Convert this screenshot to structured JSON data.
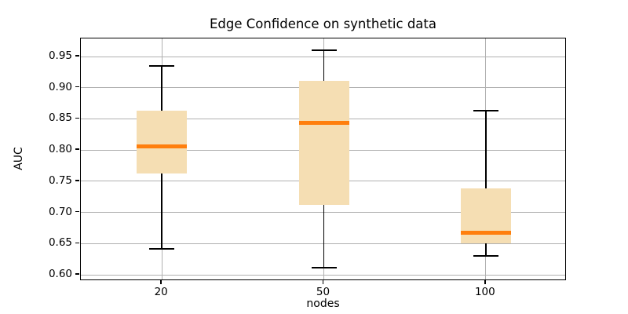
{
  "figure": {
    "title": "Edge Confidence on synthetic data",
    "xlabel": "nodes",
    "ylabel": "AUC"
  },
  "chart_data": {
    "type": "box",
    "title": "Edge Confidence on synthetic data",
    "xlabel": "nodes",
    "ylabel": "AUC",
    "categories": [
      "20",
      "50",
      "100"
    ],
    "series": [
      {
        "category": "20",
        "whisker_low": 0.642,
        "q1": 0.762,
        "median": 0.806,
        "q3": 0.863,
        "whisker_high": 0.935
      },
      {
        "category": "50",
        "whisker_low": 0.611,
        "q1": 0.712,
        "median": 0.844,
        "q3": 0.911,
        "whisker_high": 0.96
      },
      {
        "category": "100",
        "whisker_low": 0.63,
        "q1": 0.651,
        "median": 0.668,
        "q3": 0.738,
        "whisker_high": 0.863
      }
    ],
    "yticks": [
      0.6,
      0.65,
      0.7,
      0.75,
      0.8,
      0.85,
      0.9,
      0.95
    ],
    "ylim": [
      0.59,
      0.979
    ],
    "grid": true,
    "legend": null,
    "colors": {
      "box_fill": "#f5deb3",
      "median": "#ff7f0e",
      "whisker": "#000000",
      "grid": "#b0b0b0",
      "spine": "#000000"
    }
  }
}
